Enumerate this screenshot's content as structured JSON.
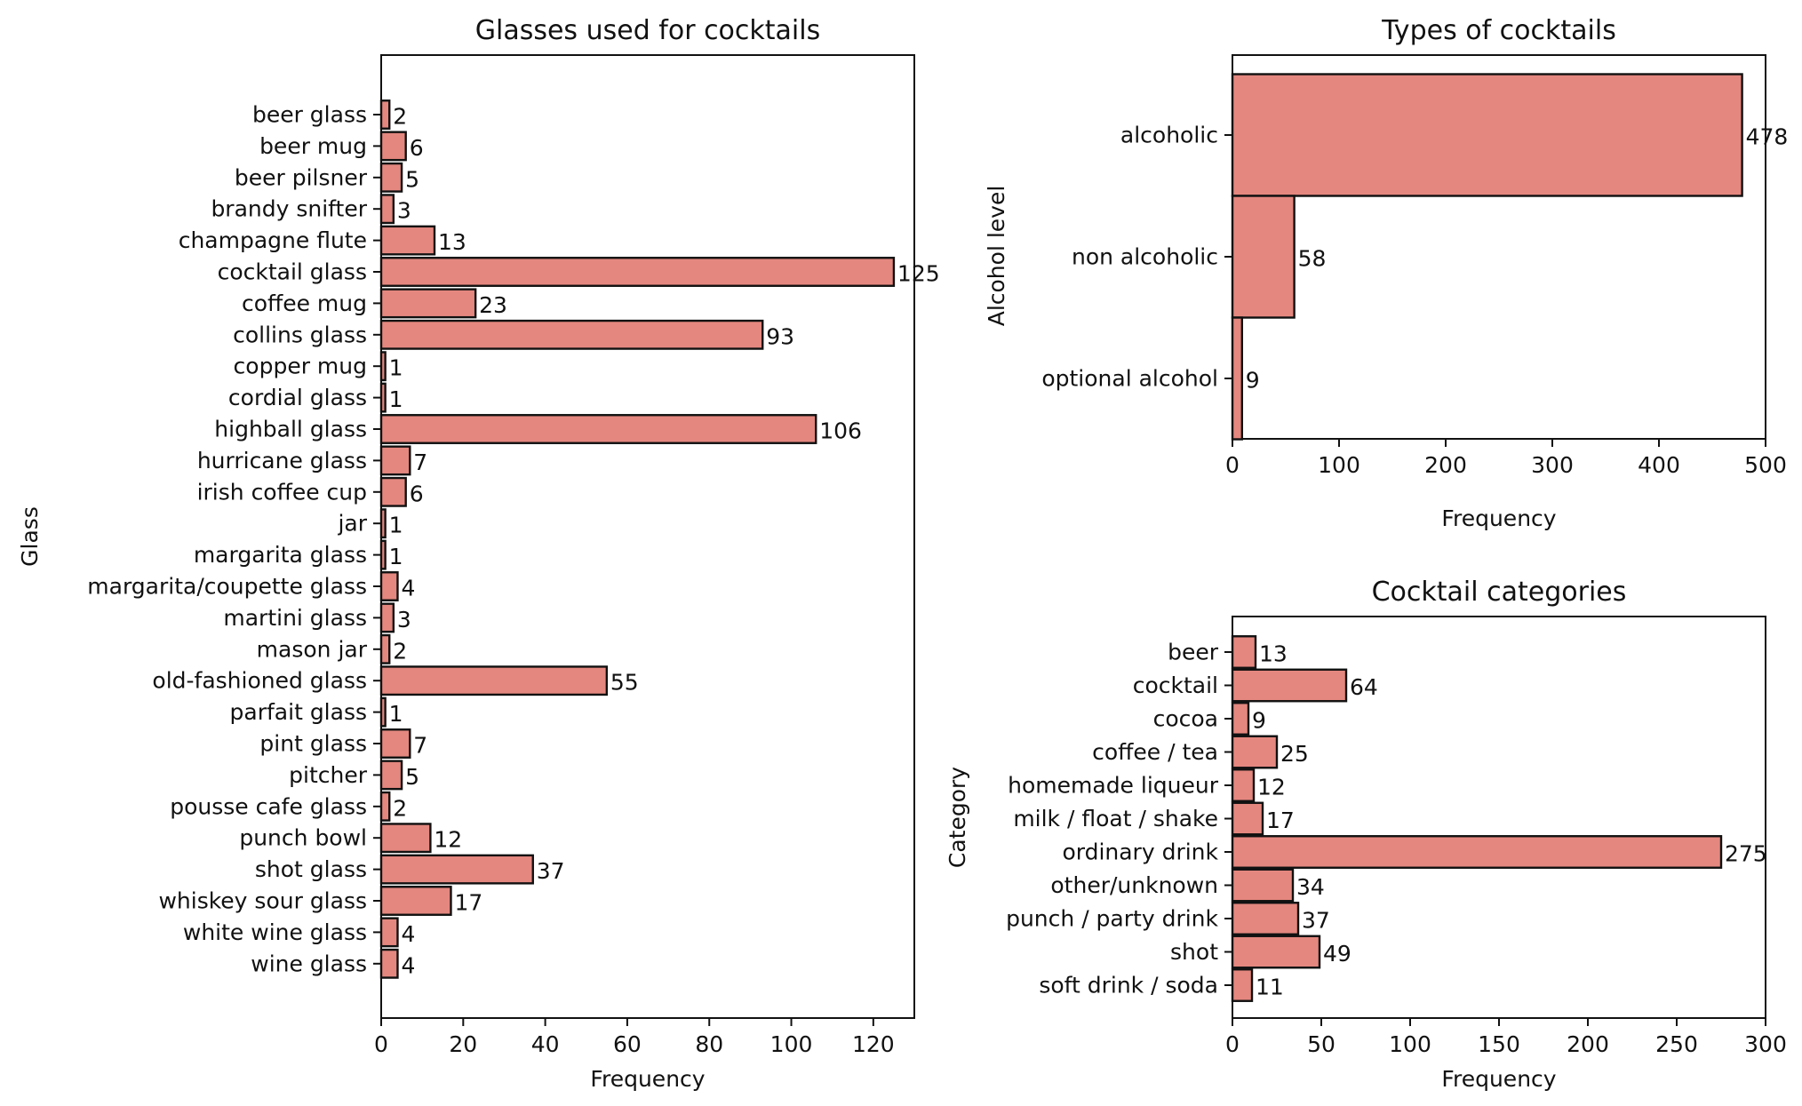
{
  "chart_data": [
    {
      "type": "bar",
      "orientation": "horizontal",
      "title": "Glasses used for cocktails",
      "xlabel": "Frequency",
      "ylabel": "Glass",
      "xlim": [
        0,
        130
      ],
      "xticks": [
        0,
        20,
        40,
        60,
        80,
        100,
        120
      ],
      "grid": false,
      "bar_color": "#e4877f",
      "edge_color": "#111111",
      "categories": [
        "beer glass",
        "beer mug",
        "beer pilsner",
        "brandy snifter",
        "champagne flute",
        "cocktail glass",
        "coffee mug",
        "collins glass",
        "copper mug",
        "cordial glass",
        "highball glass",
        "hurricane glass",
        "irish coffee cup",
        "jar",
        "margarita glass",
        "margarita/coupette glass",
        "martini glass",
        "mason jar",
        "old-fashioned glass",
        "parfait glass",
        "pint glass",
        "pitcher",
        "pousse cafe glass",
        "punch bowl",
        "shot glass",
        "whiskey sour glass",
        "white wine glass",
        "wine glass"
      ],
      "values": [
        2,
        6,
        5,
        3,
        13,
        125,
        23,
        93,
        1,
        1,
        106,
        7,
        6,
        1,
        1,
        4,
        3,
        2,
        55,
        1,
        7,
        5,
        2,
        12,
        37,
        17,
        4,
        4
      ]
    },
    {
      "type": "bar",
      "orientation": "horizontal",
      "title": "Types of cocktails",
      "xlabel": "Frequency",
      "ylabel": "Alcohol level",
      "xlim": [
        0,
        500
      ],
      "xticks": [
        0,
        100,
        200,
        300,
        400,
        500
      ],
      "grid": false,
      "bar_color": "#e4877f",
      "edge_color": "#111111",
      "categories": [
        "alcoholic",
        "non alcoholic",
        "optional alcohol"
      ],
      "values": [
        478,
        58,
        9
      ]
    },
    {
      "type": "bar",
      "orientation": "horizontal",
      "title": "Cocktail categories",
      "xlabel": "Frequency",
      "ylabel": "Category",
      "xlim": [
        0,
        300
      ],
      "xticks": [
        0,
        50,
        100,
        150,
        200,
        250,
        300
      ],
      "grid": false,
      "bar_color": "#e4877f",
      "edge_color": "#111111",
      "categories": [
        "beer",
        "cocktail",
        "cocoa",
        "coffee / tea",
        "homemade liqueur",
        "milk / float / shake",
        "ordinary drink",
        "other/unknown",
        "punch / party drink",
        "shot",
        "soft drink / soda"
      ],
      "values": [
        13,
        64,
        9,
        25,
        12,
        17,
        275,
        34,
        37,
        49,
        11
      ]
    }
  ]
}
